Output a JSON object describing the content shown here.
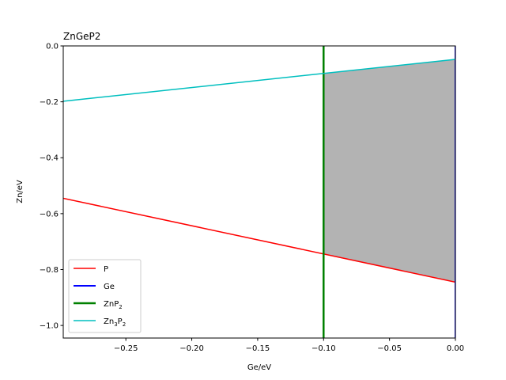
{
  "chart_data": {
    "type": "line",
    "title": "ZnGeP2",
    "xlabel": "Ge/eV",
    "ylabel": "Zn/eV",
    "xlim": [
      -0.2975,
      0.0
    ],
    "ylim": [
      -1.045,
      0.0
    ],
    "xticks": [
      -0.25,
      -0.2,
      -0.15,
      -0.1,
      -0.05,
      0.0
    ],
    "xtick_labels": [
      "−0.25",
      "−0.20",
      "−0.15",
      "−0.10",
      "−0.05",
      "0.00"
    ],
    "yticks": [
      0.0,
      -0.2,
      -0.4,
      -0.6,
      -0.8,
      -1.0
    ],
    "ytick_labels": [
      "0.0",
      "−0.2",
      "−0.4",
      "−0.6",
      "−0.8",
      "−1.0"
    ],
    "grid": false,
    "legend_position": "lower-left",
    "series": [
      {
        "name": "P",
        "color": "#ff0000",
        "width": 1.5,
        "x": [
          -0.2975,
          0.0
        ],
        "y": [
          -0.545,
          -0.845
        ]
      },
      {
        "name": "Ge",
        "color": "#0000ff",
        "width": 2,
        "x": [
          0.0,
          0.0
        ],
        "y": [
          0.0,
          -1.045
        ]
      },
      {
        "name": "ZnP",
        "sub": "2",
        "color": "#008000",
        "width": 2.5,
        "x": [
          -0.1,
          -0.1
        ],
        "y": [
          0.0,
          -1.045
        ]
      },
      {
        "name": "Zn",
        "sub": "3",
        "name2": "P",
        "sub2": "2",
        "color": "#00bfbf",
        "width": 1.5,
        "x": [
          -0.2975,
          0.0
        ],
        "y": [
          -0.198,
          -0.048
        ]
      }
    ],
    "stable_region": {
      "color": "#b3b3b3",
      "x": [
        -0.1,
        0.0,
        0.0,
        -0.1
      ],
      "y": [
        -0.098,
        -0.048,
        -0.845,
        -0.745
      ]
    }
  }
}
